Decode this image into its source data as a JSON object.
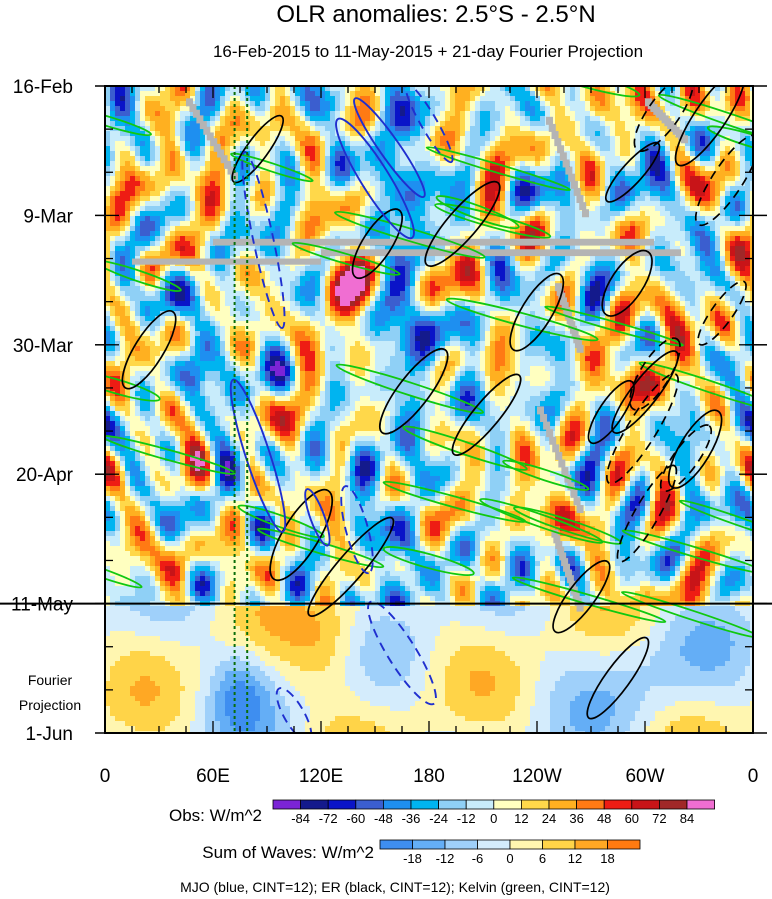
{
  "chart_data": {
    "type": "heatmap",
    "title": "OLR anomalies: 2.5°S - 2.5°N",
    "subtitle": "16-Feb-2015 to 11-May-2015 + 21-day Fourier Projection",
    "x_ticks": [
      {
        "label": "0",
        "lon": 0
      },
      {
        "label": "60E",
        "lon": 60
      },
      {
        "label": "120E",
        "lon": 120
      },
      {
        "label": "180",
        "lon": 180
      },
      {
        "label": "120W",
        "lon": 240
      },
      {
        "label": "60W",
        "lon": 300
      },
      {
        "label": "0",
        "lon": 360
      }
    ],
    "x_range": [
      0,
      360
    ],
    "y_ticks": [
      {
        "label": "16-Feb",
        "day": 0
      },
      {
        "label": "9-Mar",
        "day": 21
      },
      {
        "label": "30-Mar",
        "day": 42
      },
      {
        "label": "20-Apr",
        "day": 63
      },
      {
        "label": "11-May",
        "day": 84
      },
      {
        "label": "1-Jun",
        "day": 105
      }
    ],
    "y_range_days": [
      0,
      105
    ],
    "observation_end_day": 84,
    "projection_label": [
      "Fourier",
      "Projection"
    ],
    "reference_lines_lon": [
      72,
      79
    ],
    "obs_colorbar": {
      "label": "Obs: W/m^2",
      "levels": [
        "-84",
        "-72",
        "-60",
        "-48",
        "-36",
        "-24",
        "-12",
        "0",
        "12",
        "24",
        "36",
        "48",
        "60",
        "72",
        "84"
      ],
      "colors": [
        "#7b24d6",
        "#141a8c",
        "#0a14c8",
        "#3b5ecf",
        "#1e8ff0",
        "#00b4f0",
        "#8fd0f6",
        "#c8ecfb",
        "#ffffc0",
        "#ffd84a",
        "#ffb020",
        "#ff7a14",
        "#ee1c14",
        "#c81418",
        "#a02828",
        "#f06ed2"
      ]
    },
    "waves_colorbar": {
      "label": "Sum of Waves: W/m^2",
      "levels": [
        "-18",
        "-12",
        "-6",
        "0",
        "6",
        "12",
        "18"
      ],
      "colors": [
        "#3e8ef0",
        "#64aef6",
        "#9fd0fa",
        "#d4ecfc",
        "#fff6b0",
        "#ffd448",
        "#ffa824",
        "#ff7a10"
      ]
    },
    "footer": "MJO (blue, CINT=12); ER (black, CINT=12); Kelvin (green, CINT=12)",
    "wave_contours": [
      {
        "wave": "MJO",
        "color": "#1f2fcf"
      },
      {
        "wave": "ER",
        "color": "#000000"
      },
      {
        "wave": "Kelvin",
        "color": "#10c810"
      }
    ]
  }
}
